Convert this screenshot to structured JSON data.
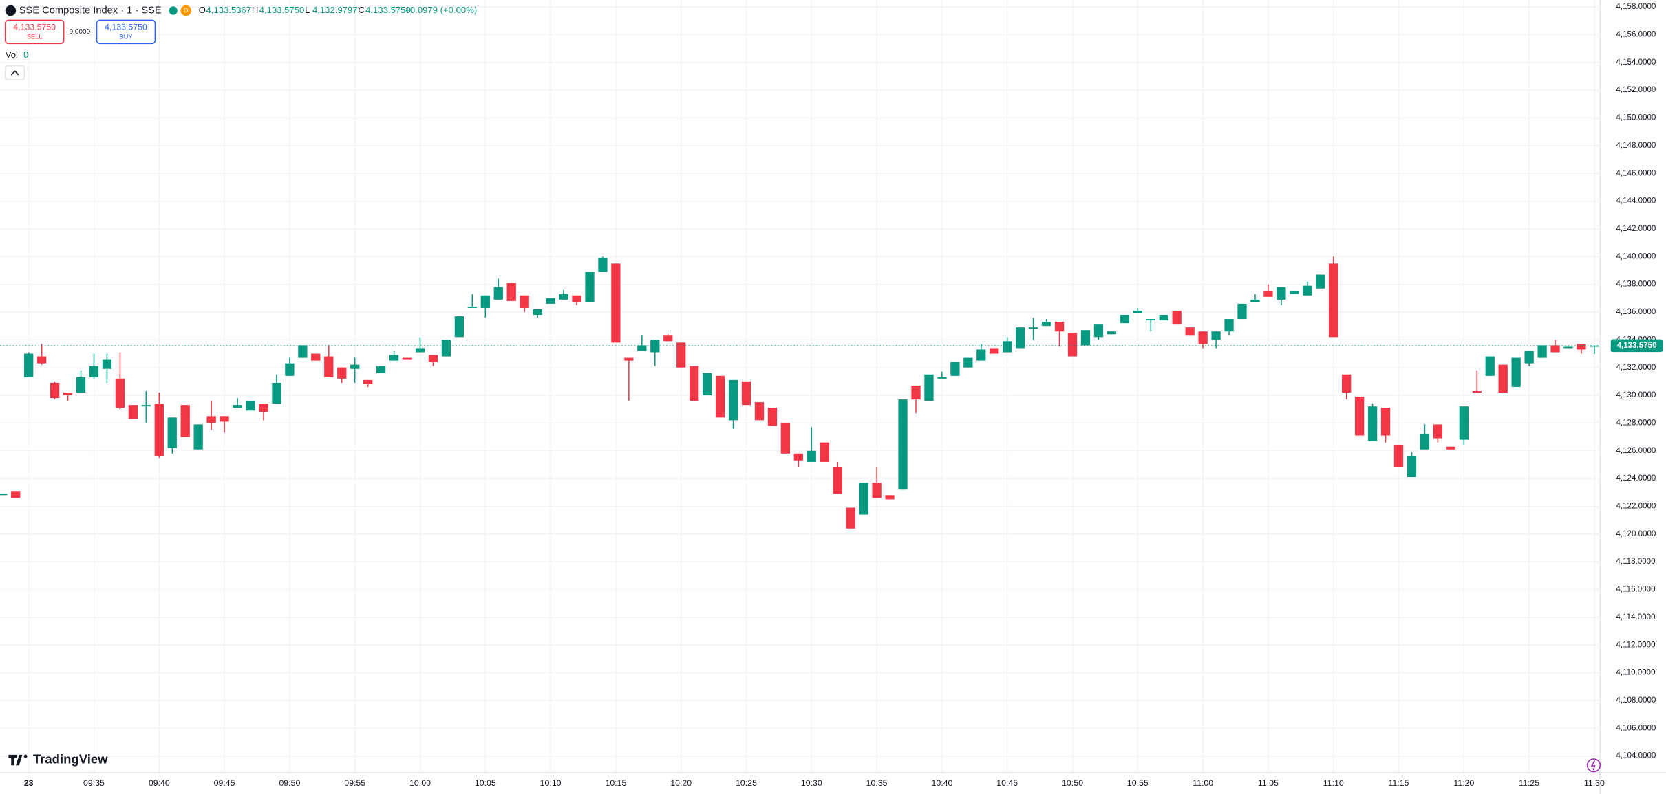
{
  "header": {
    "title": "SSE Composite Index · 1 · SSE",
    "interval_badge": "D",
    "ohlc": [
      {
        "label": "O",
        "value": "4,133.5367"
      },
      {
        "label": "H",
        "value": "4,133.5750"
      },
      {
        "label": "L",
        "value": "4,132.9797"
      },
      {
        "label": "C",
        "value": "4,133.5750"
      }
    ],
    "change": "+0.0979 (+0.00%)",
    "sell": {
      "price": "4,133.5750",
      "label": "SELL"
    },
    "spread": "0.0000",
    "buy": {
      "price": "4,133.5750",
      "label": "BUY"
    },
    "volume": {
      "label": "Vol",
      "value": "0"
    },
    "brand": "TradingView"
  },
  "chart_data": {
    "type": "candlestick",
    "up_color": "#089981",
    "down_color": "#f23645",
    "grid": true,
    "last_price": {
      "value": 4133.575,
      "label": "4,133.5750"
    },
    "ylim": [
      4103.4,
      4158.5
    ],
    "yticks": [
      {
        "value": 4104,
        "label": "4,104.0000"
      },
      {
        "value": 4106,
        "label": "4,106.0000"
      },
      {
        "value": 4108,
        "label": "4,108.0000"
      },
      {
        "value": 4110,
        "label": "4,110.0000"
      },
      {
        "value": 4112,
        "label": "4,112.0000"
      },
      {
        "value": 4114,
        "label": "4,114.0000"
      },
      {
        "value": 4116,
        "label": "4,116.0000"
      },
      {
        "value": 4118,
        "label": "4,118.0000"
      },
      {
        "value": 4120,
        "label": "4,120.0000"
      },
      {
        "value": 4122,
        "label": "4,122.0000"
      },
      {
        "value": 4124,
        "label": "4,124.0000"
      },
      {
        "value": 4126,
        "label": "4,126.0000"
      },
      {
        "value": 4128,
        "label": "4,128.0000"
      },
      {
        "value": 4130,
        "label": "4,130.0000"
      },
      {
        "value": 4132,
        "label": "4,132.0000"
      },
      {
        "value": 4134,
        "label": "4,134.0000"
      },
      {
        "value": 4136,
        "label": "4,136.0000"
      },
      {
        "value": 4138,
        "label": "4,138.0000"
      },
      {
        "value": 4140,
        "label": "4,140.0000"
      },
      {
        "value": 4142,
        "label": "4,142.0000"
      },
      {
        "value": 4144,
        "label": "4,144.0000"
      },
      {
        "value": 4146,
        "label": "4,146.0000"
      },
      {
        "value": 4148,
        "label": "4,148.0000"
      },
      {
        "value": 4150,
        "label": "4,150.0000"
      },
      {
        "value": 4152,
        "label": "4,152.0000"
      },
      {
        "value": 4154,
        "label": "4,154.0000"
      },
      {
        "value": 4156,
        "label": "4,156.0000"
      },
      {
        "value": 4158,
        "label": "4,158.0000"
      }
    ],
    "xticks": [
      {
        "value": "09:30",
        "label": "23"
      },
      "09:35",
      "09:40",
      "09:45",
      "09:50",
      "09:55",
      "10:00",
      "10:05",
      "10:10",
      "10:15",
      "10:20",
      "10:25",
      "10:30",
      "10:35",
      "10:40",
      "10:45",
      "10:50",
      "10:55",
      "11:00",
      "11:05",
      "11:10",
      "11:15",
      "11:20",
      "11:25",
      "11:30"
    ],
    "x": [
      "09:28",
      "09:29",
      "09:30",
      "09:31",
      "09:32",
      "09:33",
      "09:34",
      "09:35",
      "09:36",
      "09:37",
      "09:38",
      "09:39",
      "09:40",
      "09:41",
      "09:42",
      "09:43",
      "09:44",
      "09:45",
      "09:46",
      "09:47",
      "09:48",
      "09:49",
      "09:50",
      "09:51",
      "09:52",
      "09:53",
      "09:54",
      "09:55",
      "09:56",
      "09:57",
      "09:58",
      "09:59",
      "10:00",
      "10:01",
      "10:02",
      "10:03",
      "10:04",
      "10:05",
      "10:06",
      "10:07",
      "10:08",
      "10:09",
      "10:10",
      "10:11",
      "10:12",
      "10:13",
      "10:14",
      "10:15",
      "10:16",
      "10:17",
      "10:18",
      "10:19",
      "10:20",
      "10:21",
      "10:22",
      "10:23",
      "10:24",
      "10:25",
      "10:26",
      "10:27",
      "10:28",
      "10:29",
      "10:30",
      "10:31",
      "10:32",
      "10:33",
      "10:34",
      "10:35",
      "10:36",
      "10:37",
      "10:38",
      "10:39",
      "10:40",
      "10:41",
      "10:42",
      "10:43",
      "10:44",
      "10:45",
      "10:46",
      "10:47",
      "10:48",
      "10:49",
      "10:50",
      "10:51",
      "10:52",
      "10:53",
      "10:54",
      "10:55",
      "10:56",
      "10:57",
      "10:58",
      "10:59",
      "11:00",
      "11:01",
      "11:02",
      "11:03",
      "11:04",
      "11:05",
      "11:06",
      "11:07",
      "11:08",
      "11:09",
      "11:10",
      "11:11",
      "11:12",
      "11:13",
      "11:14",
      "11:15",
      "11:16",
      "11:17",
      "11:18",
      "11:19",
      "11:20",
      "11:21",
      "11:22",
      "11:23",
      "11:24",
      "11:25",
      "11:26",
      "11:27",
      "11:28",
      "11:29",
      "11:30"
    ],
    "ohlc": [
      [
        4122.8,
        4122.9,
        4122.8,
        4122.9
      ],
      [
        4123.1,
        4123.1,
        4122.6,
        4122.6
      ],
      [
        4131.3,
        4133.1,
        4131.3,
        4133.0
      ],
      [
        4132.8,
        4133.7,
        4132.2,
        4132.3
      ],
      [
        4130.9,
        4131.0,
        4129.7,
        4129.8
      ],
      [
        4130.2,
        4130.2,
        4129.6,
        4130.0
      ],
      [
        4130.2,
        4131.8,
        4130.2,
        4131.3
      ],
      [
        4131.3,
        4133.0,
        4131.2,
        4132.1
      ],
      [
        4131.9,
        4133.0,
        4130.9,
        4132.6
      ],
      [
        4131.2,
        4133.1,
        4129.0,
        4129.1
      ],
      [
        4129.3,
        4129.3,
        4128.3,
        4128.3
      ],
      [
        4129.2,
        4130.3,
        4128.0,
        4129.3
      ],
      [
        4129.4,
        4130.2,
        4125.5,
        4125.6
      ],
      [
        4126.2,
        4128.4,
        4125.8,
        4128.4
      ],
      [
        4129.3,
        4129.3,
        4127.0,
        4127.0
      ],
      [
        4126.1,
        4127.9,
        4126.1,
        4127.9
      ],
      [
        4128.5,
        4129.6,
        4127.5,
        4128.0
      ],
      [
        4128.5,
        4128.5,
        4127.3,
        4128.1
      ],
      [
        4129.1,
        4129.8,
        4129.1,
        4129.3
      ],
      [
        4128.9,
        4129.6,
        4128.9,
        4129.6
      ],
      [
        4129.4,
        4129.4,
        4128.2,
        4128.8
      ],
      [
        4129.4,
        4131.5,
        4129.4,
        4130.9
      ],
      [
        4131.4,
        4132.7,
        4131.4,
        4132.3
      ],
      [
        4132.7,
        4133.6,
        4132.7,
        4133.6
      ],
      [
        4133.0,
        4133.0,
        4132.5,
        4132.5
      ],
      [
        4132.8,
        4133.6,
        4131.3,
        4131.3
      ],
      [
        4132.0,
        4132.0,
        4130.9,
        4131.2
      ],
      [
        4131.9,
        4132.7,
        4130.9,
        4132.2
      ],
      [
        4131.1,
        4131.1,
        4130.6,
        4130.8
      ],
      [
        4131.6,
        4132.1,
        4131.6,
        4132.1
      ],
      [
        4132.5,
        4133.2,
        4132.5,
        4132.9
      ],
      [
        4132.7,
        4132.7,
        4132.6,
        4132.6
      ],
      [
        4133.1,
        4134.2,
        4133.1,
        4133.4
      ],
      [
        4132.9,
        4132.9,
        4132.1,
        4132.4
      ],
      [
        4132.8,
        4134.0,
        4132.8,
        4134.0
      ],
      [
        4134.2,
        4135.7,
        4134.2,
        4135.7
      ],
      [
        4136.3,
        4137.3,
        4136.3,
        4136.4
      ],
      [
        4136.3,
        4137.2,
        4135.6,
        4137.2
      ],
      [
        4136.9,
        4138.4,
        4136.9,
        4137.8
      ],
      [
        4138.1,
        4138.1,
        4136.8,
        4136.8
      ],
      [
        4137.2,
        4137.2,
        4136.0,
        4136.3
      ],
      [
        4135.8,
        4136.2,
        4135.6,
        4136.2
      ],
      [
        4136.6,
        4137.0,
        4136.6,
        4137.0
      ],
      [
        4136.9,
        4137.6,
        4136.9,
        4137.3
      ],
      [
        4137.2,
        4137.2,
        4136.5,
        4136.7
      ],
      [
        4136.7,
        4138.9,
        4136.7,
        4138.9
      ],
      [
        4138.9,
        4140.0,
        4138.9,
        4139.9
      ],
      [
        4139.5,
        4139.5,
        4133.8,
        4133.8
      ],
      [
        4132.7,
        4132.7,
        4129.6,
        4132.5
      ],
      [
        4133.2,
        4134.3,
        4133.2,
        4133.6
      ],
      [
        4133.1,
        4134.0,
        4132.1,
        4134.0
      ],
      [
        4134.3,
        4134.4,
        4133.9,
        4133.9
      ],
      [
        4133.8,
        4133.8,
        4132.0,
        4132.0
      ],
      [
        4132.1,
        4132.1,
        4129.6,
        4129.6
      ],
      [
        4130.0,
        4131.6,
        4130.0,
        4131.6
      ],
      [
        4131.4,
        4131.4,
        4128.4,
        4128.4
      ],
      [
        4128.2,
        4131.1,
        4127.6,
        4131.1
      ],
      [
        4131.0,
        4131.0,
        4129.3,
        4129.3
      ],
      [
        4129.5,
        4129.5,
        4128.2,
        4128.2
      ],
      [
        4129.1,
        4129.1,
        4127.8,
        4127.8
      ],
      [
        4128.0,
        4128.0,
        4125.8,
        4125.8
      ],
      [
        4125.8,
        4125.8,
        4124.8,
        4125.3
      ],
      [
        4125.2,
        4127.7,
        4125.2,
        4126.0
      ],
      [
        4126.6,
        4126.6,
        4125.2,
        4125.2
      ],
      [
        4124.8,
        4125.2,
        4122.9,
        4122.9
      ],
      [
        4121.9,
        4121.9,
        4120.4,
        4120.4
      ],
      [
        4121.4,
        4123.7,
        4121.4,
        4123.7
      ],
      [
        4123.7,
        4124.8,
        4122.6,
        4122.6
      ],
      [
        4122.8,
        4122.8,
        4122.5,
        4122.5
      ],
      [
        4123.2,
        4129.7,
        4123.2,
        4129.7
      ],
      [
        4130.7,
        4130.7,
        4128.7,
        4129.7
      ],
      [
        4129.6,
        4131.5,
        4129.6,
        4131.5
      ],
      [
        4131.2,
        4131.7,
        4131.2,
        4131.3
      ],
      [
        4131.4,
        4132.4,
        4131.4,
        4132.4
      ],
      [
        4132.0,
        4132.7,
        4132.0,
        4132.7
      ],
      [
        4132.5,
        4133.7,
        4132.5,
        4133.3
      ],
      [
        4133.4,
        4133.4,
        4133.0,
        4133.0
      ],
      [
        4133.1,
        4134.2,
        4133.1,
        4133.9
      ],
      [
        4133.4,
        4134.9,
        4133.4,
        4134.9
      ],
      [
        4134.8,
        4135.6,
        4134.0,
        4134.9
      ],
      [
        4135.0,
        4135.5,
        4135.0,
        4135.3
      ],
      [
        4135.3,
        4135.3,
        4133.5,
        4134.6
      ],
      [
        4134.5,
        4134.5,
        4132.8,
        4132.8
      ],
      [
        4133.6,
        4134.7,
        4133.6,
        4134.7
      ],
      [
        4134.2,
        4135.1,
        4134.0,
        4135.1
      ],
      [
        4134.4,
        4134.6,
        4134.4,
        4134.6
      ],
      [
        4135.2,
        4135.8,
        4135.2,
        4135.8
      ],
      [
        4135.9,
        4136.3,
        4135.9,
        4136.1
      ],
      [
        4135.4,
        4135.5,
        4134.6,
        4135.5
      ],
      [
        4135.4,
        4135.8,
        4135.4,
        4135.8
      ],
      [
        4136.1,
        4136.1,
        4135.1,
        4135.1
      ],
      [
        4134.9,
        4134.9,
        4134.3,
        4134.3
      ],
      [
        4134.6,
        4134.6,
        4133.4,
        4133.7
      ],
      [
        4134.0,
        4134.6,
        4133.4,
        4134.6
      ],
      [
        4134.6,
        4135.5,
        4134.3,
        4135.5
      ],
      [
        4135.5,
        4136.6,
        4135.5,
        4136.6
      ],
      [
        4136.7,
        4137.3,
        4136.7,
        4136.9
      ],
      [
        4137.5,
        4138.0,
        4137.1,
        4137.1
      ],
      [
        4136.9,
        4137.8,
        4136.5,
        4137.8
      ],
      [
        4137.3,
        4137.5,
        4137.3,
        4137.5
      ],
      [
        4137.2,
        4138.2,
        4137.2,
        4137.9
      ],
      [
        4137.7,
        4138.7,
        4137.7,
        4138.7
      ],
      [
        4139.5,
        4140.0,
        4134.2,
        4134.2
      ],
      [
        4131.5,
        4131.5,
        4129.7,
        4130.2
      ],
      [
        4129.9,
        4129.9,
        4127.1,
        4127.1
      ],
      [
        4126.7,
        4129.4,
        4126.7,
        4129.2
      ],
      [
        4129.1,
        4129.1,
        4126.6,
        4127.1
      ],
      [
        4126.4,
        4126.4,
        4124.8,
        4124.8
      ],
      [
        4124.1,
        4125.9,
        4124.1,
        4125.6
      ],
      [
        4126.1,
        4127.9,
        4126.1,
        4127.2
      ],
      [
        4127.9,
        4127.9,
        4126.6,
        4126.9
      ],
      [
        4126.3,
        4126.3,
        4126.1,
        4126.1
      ],
      [
        4126.8,
        4129.2,
        4126.4,
        4129.2
      ],
      [
        4130.3,
        4131.8,
        4130.2,
        4130.2
      ],
      [
        4131.4,
        4132.8,
        4131.4,
        4132.8
      ],
      [
        4132.2,
        4132.2,
        4130.2,
        4130.2
      ],
      [
        4130.6,
        4132.7,
        4130.6,
        4132.7
      ],
      [
        4132.3,
        4133.2,
        4132.1,
        4133.2
      ],
      [
        4132.7,
        4133.6,
        4132.7,
        4133.6
      ],
      [
        4133.6,
        4134.0,
        4133.1,
        4133.1
      ],
      [
        4133.4,
        4133.5,
        4133.4,
        4133.5
      ],
      [
        4133.7,
        4133.7,
        4133.0,
        4133.3
      ],
      [
        4133.5367,
        4133.575,
        4132.9797,
        4133.575
      ]
    ]
  }
}
